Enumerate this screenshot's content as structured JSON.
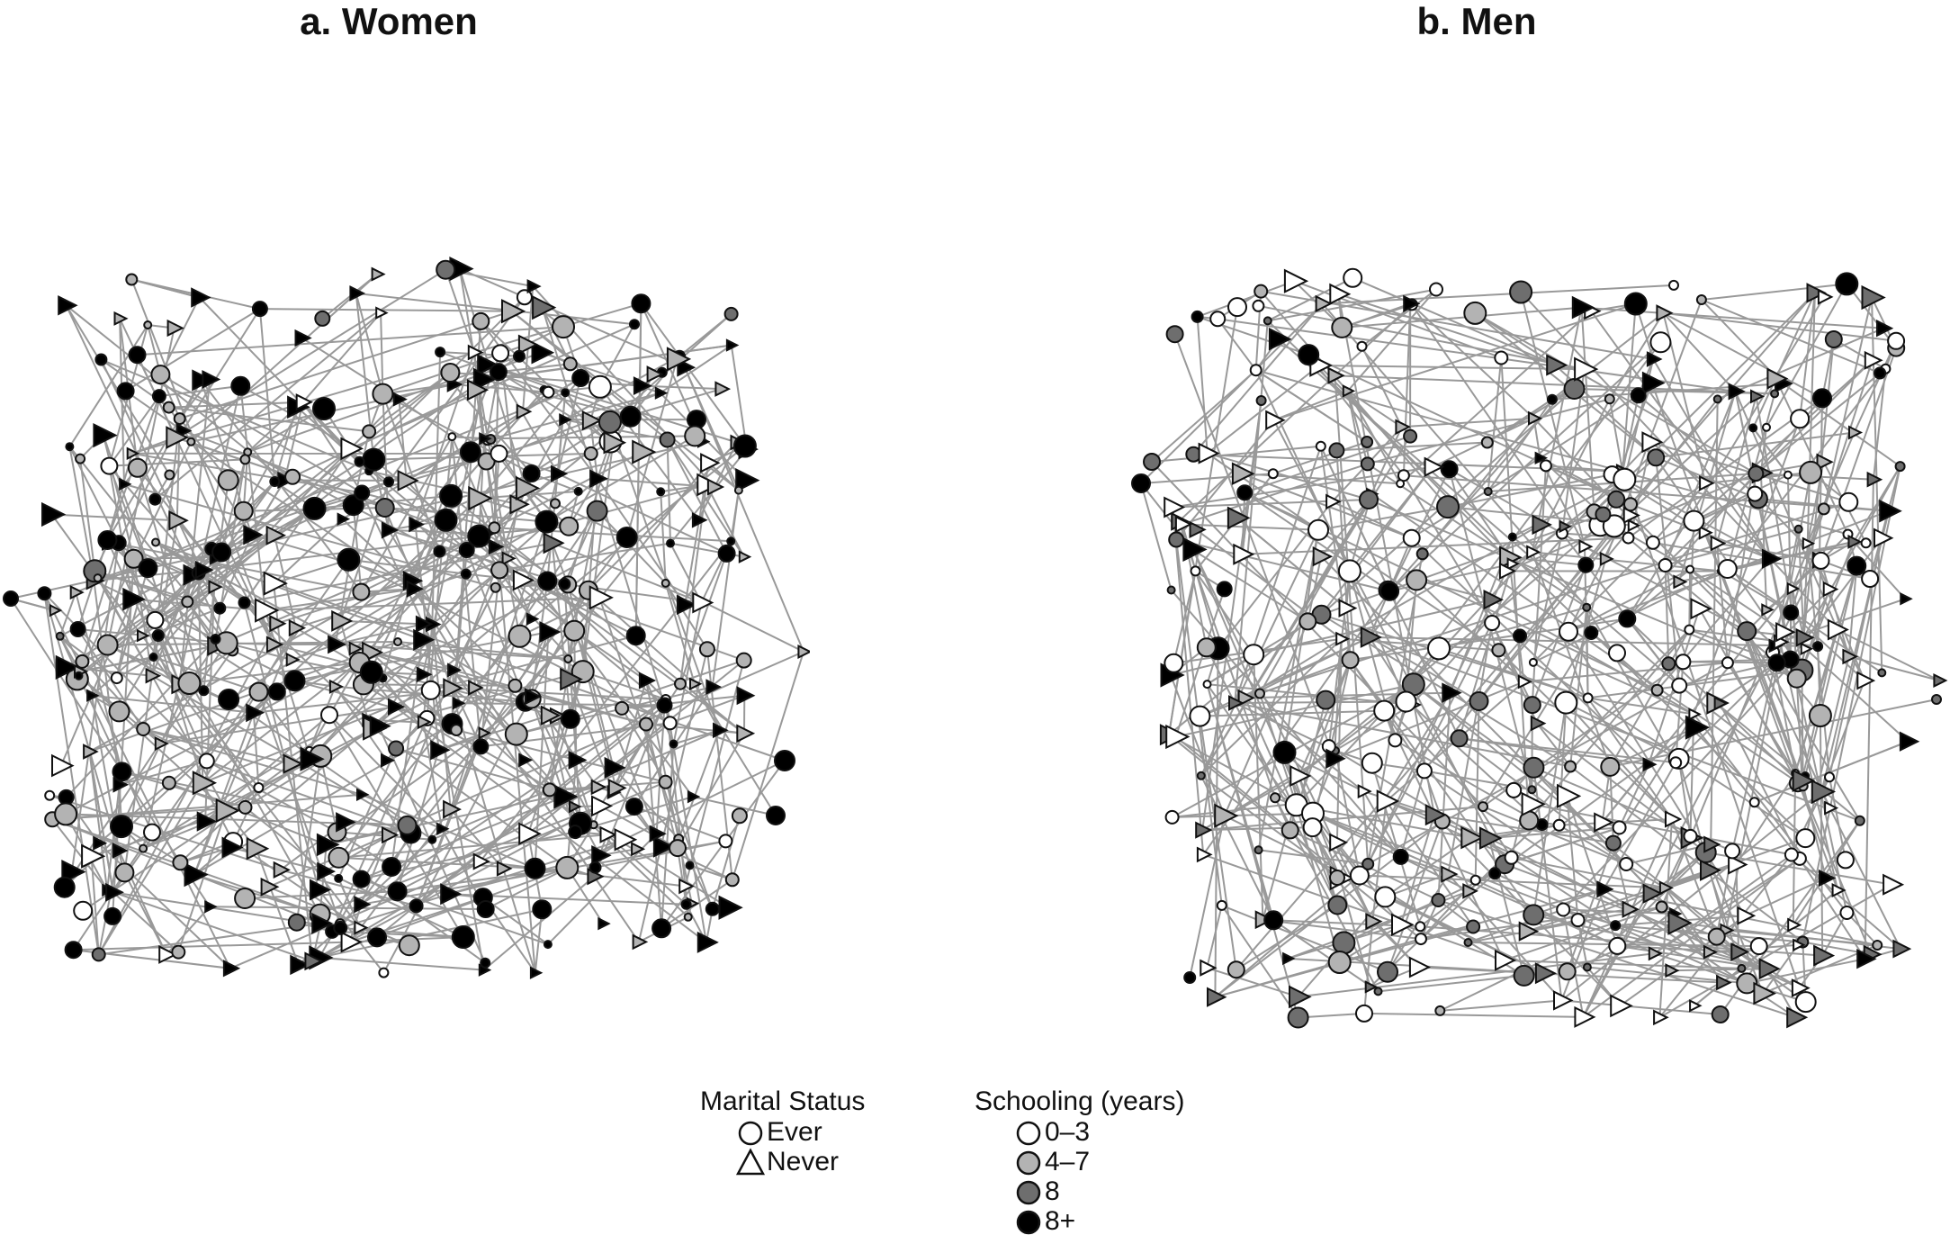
{
  "panels": [
    {
      "id": "women",
      "title": "a. Women"
    },
    {
      "id": "men",
      "title": "b. Men"
    }
  ],
  "legend": {
    "marital": {
      "title": "Marital Status",
      "items": [
        {
          "label": "Ever",
          "shape": "circle"
        },
        {
          "label": "Never",
          "shape": "triangle"
        }
      ]
    },
    "schooling": {
      "title": "Schooling (years)",
      "items": [
        {
          "label": "0–3",
          "color": "#ffffff"
        },
        {
          "label": "4–7",
          "color": "#b3b3b3"
        },
        {
          "label": "8",
          "color": "#6e6e6e"
        },
        {
          "label": "8+",
          "color": "#000000"
        }
      ]
    }
  },
  "colors": {
    "edge": "#999999",
    "node_stroke": "#111111"
  }
}
